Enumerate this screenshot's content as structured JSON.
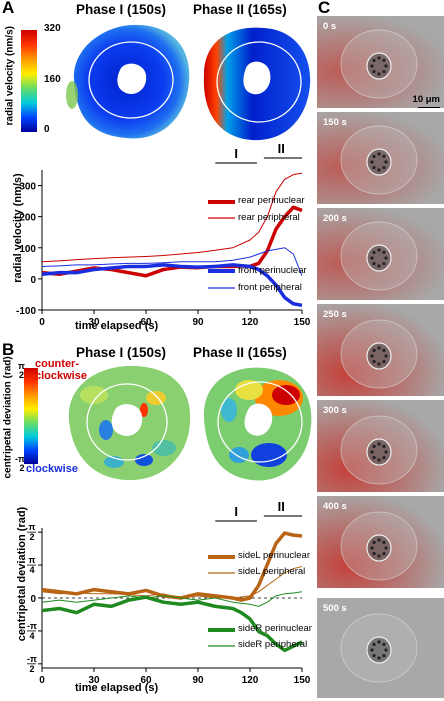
{
  "panels": {
    "A": "A",
    "B": "B",
    "C": "C"
  },
  "panelA": {
    "phase1": "Phase I (150s)",
    "phase2": "Phase II (165s)",
    "colorbar": {
      "label": "radial velocity (nm/s)",
      "ticks": [
        "320",
        "160",
        "0"
      ]
    },
    "graph": {
      "ylabel": "radial velocity (nm/s)",
      "xlabel": "time elapsed (s)",
      "yticks": [
        "300",
        "200",
        "100",
        "0",
        "-100"
      ],
      "xticks": [
        "0",
        "30",
        "60",
        "90",
        "120",
        "150"
      ],
      "phaseI": "I",
      "phaseII": "II",
      "legend": [
        "rear perinuclear",
        "rear peripheral",
        "front perinuclear",
        "front peripheral"
      ]
    }
  },
  "panelB": {
    "phase1": "Phase I (150s)",
    "phase2": "Phase II (165s)",
    "colorbar": {
      "label": "centripetal deviation (rad)",
      "top": "counter-clockwise",
      "top1": "counter-",
      "top2": "clockwise",
      "bottom": "clockwise",
      "tick_pi": "π",
      "tick_2": "2",
      "tick_minus": "-",
      "tick_zero": "0"
    },
    "graph": {
      "ylabel": "centripetal deviation (rad)",
      "xlabel": "time elapsed (s)",
      "yticks": [
        "π/2",
        "π/4",
        "0",
        "-π/4",
        "-π/2"
      ],
      "xticks": [
        "0",
        "30",
        "60",
        "90",
        "120",
        "150"
      ],
      "phaseI": "I",
      "phaseII": "II",
      "legend": [
        "sideL perinuclear",
        "sideL peripheral",
        "sideR perinuclear",
        "sideR peripheral"
      ]
    }
  },
  "panelC": {
    "scalebar": "10 μm",
    "frames": [
      "0 s",
      "150 s",
      "200 s",
      "250 s",
      "300 s",
      "400 s",
      "500 s"
    ]
  },
  "colors": {
    "rear": "#cc0000",
    "front": "#1a2ee0",
    "sideL": "#b86414",
    "sideR": "#1f8a1f"
  },
  "chart_data": [
    {
      "type": "line",
      "xlabel": "time elapsed (s)",
      "ylabel": "radial velocity (nm/s)",
      "xlim": [
        0,
        150
      ],
      "ylim": [
        -100,
        350
      ],
      "series": [
        {
          "name": "rear perinuclear",
          "x": [
            0,
            10,
            20,
            30,
            40,
            50,
            60,
            70,
            80,
            90,
            100,
            110,
            115,
            120,
            125,
            130,
            135,
            140,
            145,
            150
          ],
          "values": [
            20,
            15,
            25,
            35,
            30,
            20,
            10,
            30,
            38,
            36,
            40,
            40,
            42,
            40,
            50,
            90,
            160,
            200,
            230,
            220
          ]
        },
        {
          "name": "rear peripheral",
          "x": [
            0,
            10,
            20,
            30,
            40,
            50,
            60,
            70,
            80,
            90,
            100,
            110,
            120,
            125,
            130,
            135,
            140,
            145,
            150
          ],
          "values": [
            55,
            58,
            62,
            65,
            68,
            70,
            72,
            75,
            80,
            85,
            92,
            100,
            125,
            150,
            200,
            280,
            320,
            335,
            340
          ]
        },
        {
          "name": "front perinuclear",
          "x": [
            0,
            10,
            20,
            30,
            40,
            50,
            60,
            70,
            80,
            90,
            100,
            110,
            120,
            125,
            130,
            135,
            140,
            145,
            150
          ],
          "values": [
            15,
            20,
            20,
            30,
            35,
            40,
            40,
            45,
            40,
            38,
            40,
            45,
            40,
            30,
            10,
            -20,
            -60,
            -80,
            -85
          ]
        },
        {
          "name": "front peripheral",
          "x": [
            0,
            10,
            20,
            30,
            40,
            50,
            60,
            70,
            80,
            90,
            100,
            110,
            120,
            125,
            130,
            135,
            140,
            145,
            150
          ],
          "values": [
            40,
            42,
            45,
            45,
            48,
            50,
            50,
            52,
            55,
            55,
            55,
            60,
            70,
            80,
            90,
            95,
            100,
            80,
            10
          ]
        }
      ]
    },
    {
      "type": "line",
      "xlabel": "time elapsed (s)",
      "ylabel": "centripetal deviation (rad)",
      "xlim": [
        0,
        150
      ],
      "ylim": [
        -1.67,
        1.67
      ],
      "series": [
        {
          "name": "sideL perinuclear",
          "x": [
            0,
            10,
            20,
            30,
            40,
            50,
            60,
            70,
            80,
            90,
            100,
            110,
            115,
            120,
            125,
            130,
            135,
            140,
            145,
            150
          ],
          "values": [
            0.2,
            0.15,
            0.1,
            0.2,
            0.15,
            0.1,
            0.18,
            0.05,
            0.0,
            0.1,
            0.05,
            0.0,
            -0.05,
            0.0,
            0.3,
            0.8,
            1.3,
            1.55,
            1.5,
            1.48
          ]
        },
        {
          "name": "sideL peripheral",
          "x": [
            0,
            10,
            20,
            30,
            40,
            50,
            60,
            70,
            80,
            90,
            100,
            110,
            120,
            125,
            130,
            135,
            140,
            145,
            150
          ],
          "values": [
            0.15,
            0.1,
            0.12,
            0.1,
            0.1,
            0.08,
            0.05,
            0.1,
            0.0,
            0.05,
            0.0,
            0.0,
            0.05,
            0.15,
            0.3,
            0.45,
            0.6,
            0.7,
            0.75
          ]
        },
        {
          "name": "sideR perinuclear",
          "x": [
            0,
            10,
            20,
            30,
            40,
            50,
            60,
            70,
            80,
            90,
            100,
            110,
            115,
            120,
            125,
            130,
            135,
            140,
            145,
            150
          ],
          "values": [
            -0.3,
            -0.25,
            -0.35,
            -0.15,
            -0.2,
            -0.05,
            0.02,
            -0.1,
            -0.15,
            -0.1,
            -0.2,
            -0.25,
            -0.35,
            -0.5,
            -0.8,
            -0.9,
            -1.1,
            -1.25,
            -1.15,
            -1.05
          ]
        },
        {
          "name": "sideR peripheral",
          "x": [
            0,
            10,
            20,
            30,
            40,
            50,
            60,
            70,
            80,
            90,
            100,
            110,
            120,
            125,
            130,
            135,
            140,
            145,
            150
          ],
          "values": [
            -0.1,
            -0.05,
            -0.1,
            -0.05,
            0.0,
            0.05,
            0.0,
            0.05,
            0.0,
            -0.05,
            0.0,
            -0.1,
            -0.15,
            -0.2,
            -0.1,
            0.05,
            0.1,
            0.12,
            0.15
          ]
        }
      ]
    }
  ]
}
